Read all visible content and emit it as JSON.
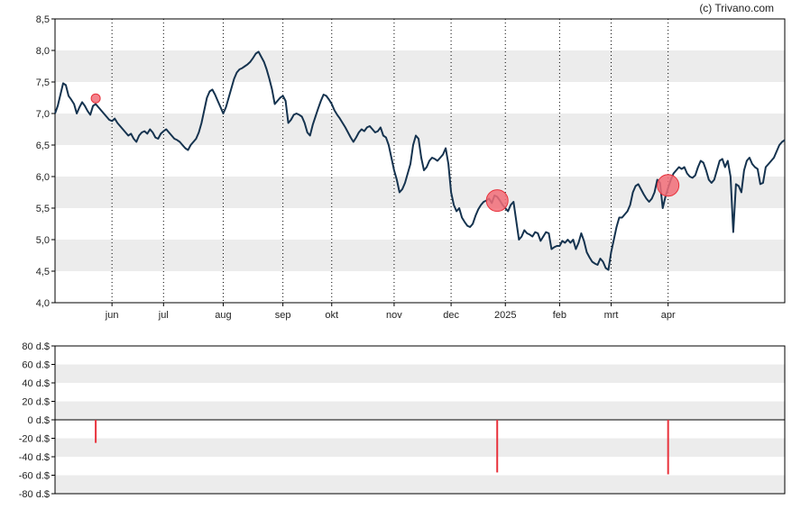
{
  "copyright": "(c) Trivano.com",
  "colors": {
    "band": "#ececec",
    "line": "#15334f",
    "marker": "#e8323c",
    "marker_fill": "#f26d78",
    "axis": "#000000",
    "grid": "#000000"
  },
  "chart_data": [
    {
      "type": "line",
      "title": "",
      "ylim": [
        4.0,
        8.5
      ],
      "y_ticks": [
        "4,0",
        "4,5",
        "5,0",
        "5,5",
        "6,0",
        "6,5",
        "7,0",
        "7,5",
        "8,0",
        "8,5"
      ],
      "y_tick_values": [
        4.0,
        4.5,
        5.0,
        5.5,
        6.0,
        6.5,
        7.0,
        7.5,
        8.0,
        8.5
      ],
      "month_labels": [
        "jun",
        "jul",
        "aug",
        "sep",
        "okt",
        "nov",
        "dec",
        "2025",
        "feb",
        "mrt",
        "apr"
      ],
      "month_label_index": [
        21,
        40,
        62,
        84,
        102,
        125,
        146,
        166,
        186,
        205,
        226
      ],
      "grid": "vertical-dotted",
      "series": [
        {
          "values": [
            7.0,
            7.12,
            7.3,
            7.48,
            7.45,
            7.28,
            7.22,
            7.15,
            7.0,
            7.1,
            7.18,
            7.12,
            7.04,
            6.98,
            7.12,
            7.15,
            7.1,
            7.05,
            7.0,
            6.95,
            6.9,
            6.88,
            6.92,
            6.85,
            6.8,
            6.75,
            6.7,
            6.65,
            6.68,
            6.6,
            6.55,
            6.65,
            6.7,
            6.72,
            6.68,
            6.75,
            6.7,
            6.62,
            6.6,
            6.68,
            6.72,
            6.75,
            6.7,
            6.65,
            6.6,
            6.58,
            6.55,
            6.5,
            6.45,
            6.42,
            6.5,
            6.55,
            6.6,
            6.7,
            6.85,
            7.05,
            7.25,
            7.35,
            7.38,
            7.3,
            7.2,
            7.1,
            7.0,
            7.1,
            7.25,
            7.4,
            7.55,
            7.65,
            7.7,
            7.72,
            7.75,
            7.78,
            7.82,
            7.88,
            7.95,
            7.98,
            7.9,
            7.82,
            7.7,
            7.55,
            7.38,
            7.15,
            7.2,
            7.25,
            7.28,
            7.2,
            6.85,
            6.9,
            6.98,
            7.0,
            6.98,
            6.95,
            6.85,
            6.7,
            6.65,
            6.82,
            6.95,
            7.08,
            7.2,
            7.3,
            7.28,
            7.22,
            7.15,
            7.05,
            6.98,
            6.92,
            6.85,
            6.78,
            6.7,
            6.62,
            6.55,
            6.62,
            6.7,
            6.75,
            6.72,
            6.78,
            6.8,
            6.75,
            6.7,
            6.72,
            6.78,
            6.65,
            6.62,
            6.5,
            6.3,
            6.1,
            5.95,
            5.75,
            5.8,
            5.9,
            6.05,
            6.2,
            6.5,
            6.65,
            6.6,
            6.3,
            6.1,
            6.15,
            6.25,
            6.3,
            6.28,
            6.25,
            6.3,
            6.35,
            6.45,
            6.2,
            5.75,
            5.55,
            5.45,
            5.5,
            5.35,
            5.28,
            5.22,
            5.2,
            5.25,
            5.38,
            5.48,
            5.55,
            5.6,
            5.62,
            5.65,
            5.58,
            5.7,
            5.68,
            5.62,
            5.55,
            5.5,
            5.45,
            5.55,
            5.6,
            5.3,
            5.0,
            5.05,
            5.15,
            5.1,
            5.08,
            5.05,
            5.12,
            5.1,
            4.98,
            5.05,
            5.12,
            5.1,
            4.85,
            4.88,
            4.9,
            4.9,
            4.98,
            4.95,
            5.0,
            4.95,
            5.0,
            4.85,
            4.95,
            5.1,
            4.98,
            4.8,
            4.72,
            4.65,
            4.62,
            4.6,
            4.7,
            4.65,
            4.55,
            4.52,
            4.8,
            5.0,
            5.2,
            5.35,
            5.35,
            5.4,
            5.45,
            5.55,
            5.75,
            5.85,
            5.88,
            5.8,
            5.72,
            5.65,
            5.6,
            5.65,
            5.75,
            5.95,
            5.9,
            5.5,
            5.68,
            5.82,
            5.95,
            6.05,
            6.1,
            6.15,
            6.12,
            6.15,
            6.05,
            6.0,
            5.98,
            6.02,
            6.15,
            6.25,
            6.22,
            6.1,
            5.95,
            5.9,
            5.95,
            6.1,
            6.25,
            6.28,
            6.15,
            6.25,
            6.0,
            5.12,
            5.88,
            5.85,
            5.75,
            6.1,
            6.25,
            6.3,
            6.2,
            6.15,
            6.12,
            5.88,
            5.9,
            6.15,
            6.2,
            6.25,
            6.3,
            6.4,
            6.5,
            6.55,
            6.58
          ]
        }
      ],
      "dividend_markers": [
        {
          "index": 15,
          "value": 7.24,
          "size": "small"
        },
        {
          "index": 163,
          "value": 5.62,
          "size": "large"
        },
        {
          "index": 226,
          "value": 5.86,
          "size": "large"
        }
      ]
    },
    {
      "type": "bar",
      "title": "",
      "ylim": [
        -80,
        80
      ],
      "y_ticks": [
        "80 d.$",
        "60 d.$",
        "40 d.$",
        "20 d.$",
        "0 d.$",
        "-20 d.$",
        "-40 d.$",
        "-60 d.$",
        "-80 d.$"
      ],
      "y_tick_values": [
        80,
        60,
        40,
        20,
        0,
        -20,
        -40,
        -60,
        -80
      ],
      "series": [
        {
          "points": [
            {
              "index": 15,
              "value": -25
            },
            {
              "index": 163,
              "value": -57
            },
            {
              "index": 226,
              "value": -59
            }
          ]
        }
      ]
    }
  ]
}
